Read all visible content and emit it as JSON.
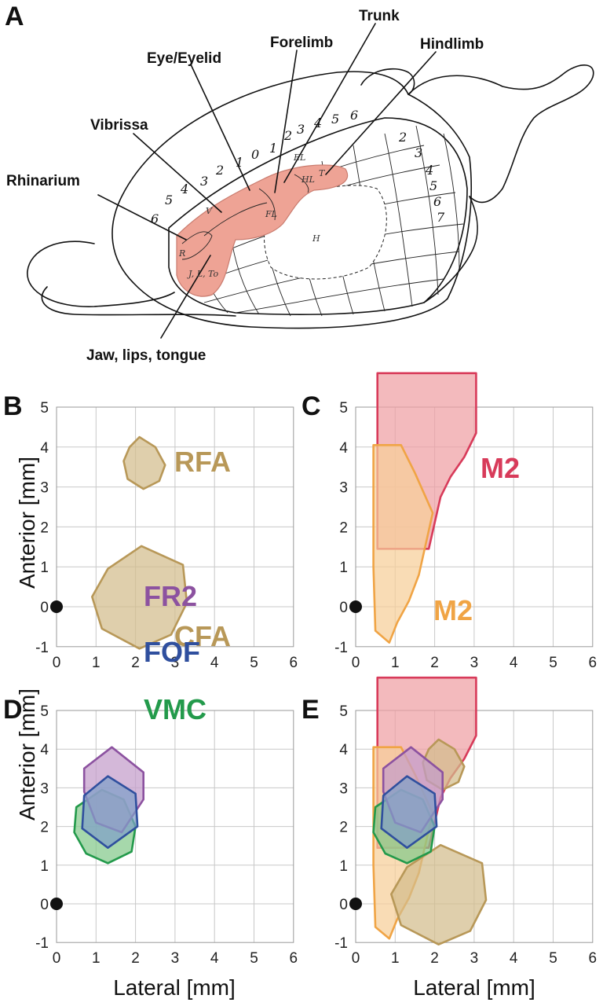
{
  "panel_a": {
    "letter": "A",
    "callouts": {
      "trunk": "Trunk",
      "forelimb": "Forelimb",
      "hindlimb": "Hindlimb",
      "eye": "Eye/Eyelid",
      "vibrissa": "Vibrissa",
      "rhinarium": "Rhinarium",
      "jaw": "Jaw, lips, tongue"
    },
    "sketch_numbers_arc": [
      "6",
      "5",
      "4",
      "3",
      "2",
      "1",
      "0",
      "1",
      "2",
      "3",
      "4",
      "5",
      "6"
    ],
    "sketch_numbers_side": [
      "2",
      "3",
      "4",
      "5",
      "6",
      "7"
    ],
    "sketch_region_codes": [
      "R",
      "V",
      "J, L, To",
      "FL",
      "HL",
      "T",
      "EL",
      "H"
    ],
    "colors": {
      "map_fill": "#eea395",
      "map_stroke": "#c97b6e"
    }
  },
  "axes": {
    "x_ticks": [
      "0",
      "1",
      "2",
      "3",
      "4",
      "5",
      "6"
    ],
    "y_ticks": [
      "5",
      "4",
      "3",
      "2",
      "1",
      "0",
      "-1"
    ],
    "xlabel": "Lateral [mm]",
    "ylabel": "Anterior [mm]",
    "xlim": [
      0,
      6
    ],
    "ylim": [
      -1,
      5
    ]
  },
  "colors": {
    "tan": "#b89858",
    "tan_fill": "#d2bd8c",
    "red": "#d83b5a",
    "red_fill": "#eea0a4",
    "orange": "#f0a445",
    "orange_fill": "#f7cf98",
    "purple": "#8c52a0",
    "purple_fill": "#c39dcb",
    "blue": "#2f4f9e",
    "blue_fill": "#7f9fc8",
    "green": "#239a4b",
    "green_fill": "#84c98a"
  },
  "panels": [
    {
      "letter": "B",
      "labels": [
        {
          "text": "RFA",
          "color": "tan"
        },
        {
          "text": "CFA",
          "color": "tan"
        }
      ],
      "regions": [
        {
          "name": "RFA",
          "color": "tan",
          "points": [
            [
              2.1,
              4.25
            ],
            [
              2.5,
              4.0
            ],
            [
              2.75,
              3.55
            ],
            [
              2.6,
              3.15
            ],
            [
              2.2,
              2.95
            ],
            [
              1.8,
              3.2
            ],
            [
              1.7,
              3.65
            ],
            [
              1.85,
              4.0
            ]
          ]
        },
        {
          "name": "CFA",
          "color": "tan",
          "points": [
            [
              2.15,
              1.52
            ],
            [
              3.2,
              1.05
            ],
            [
              3.3,
              0.1
            ],
            [
              2.9,
              -0.7
            ],
            [
              2.1,
              -1.05
            ],
            [
              1.15,
              -0.55
            ],
            [
              0.9,
              0.25
            ],
            [
              1.3,
              0.95
            ]
          ]
        }
      ]
    },
    {
      "letter": "C",
      "labels": [
        {
          "text": "M2",
          "color": "red"
        },
        {
          "text": "M2",
          "color": "orange"
        }
      ],
      "regions": [
        {
          "name": "M2",
          "color": "red",
          "points": [
            [
              0.55,
              5.85
            ],
            [
              3.05,
              5.85
            ],
            [
              3.05,
              4.35
            ],
            [
              2.75,
              3.75
            ],
            [
              2.4,
              3.25
            ],
            [
              2.15,
              2.75
            ],
            [
              1.85,
              1.45
            ],
            [
              0.55,
              1.45
            ]
          ]
        },
        {
          "name": "M2",
          "color": "orange",
          "points": [
            [
              0.45,
              4.05
            ],
            [
              1.15,
              4.05
            ],
            [
              1.5,
              3.35
            ],
            [
              1.95,
              2.35
            ],
            [
              1.6,
              0.8
            ],
            [
              1.35,
              0.15
            ],
            [
              1.05,
              -0.4
            ],
            [
              0.85,
              -0.9
            ],
            [
              0.5,
              -0.6
            ],
            [
              0.45,
              1.0
            ]
          ]
        }
      ]
    },
    {
      "letter": "D",
      "labels": [
        {
          "text": "FR2",
          "color": "purple"
        },
        {
          "text": "FOF",
          "color": "blue"
        },
        {
          "text": "VMC",
          "color": "green"
        }
      ],
      "regions": [
        {
          "name": "VMC",
          "color": "green",
          "points": [
            [
              1.15,
              2.95
            ],
            [
              1.7,
              2.7
            ],
            [
              2.0,
              2.0
            ],
            [
              1.9,
              1.35
            ],
            [
              1.3,
              1.05
            ],
            [
              0.75,
              1.3
            ],
            [
              0.45,
              1.85
            ],
            [
              0.5,
              2.5
            ]
          ]
        },
        {
          "name": "FR2",
          "color": "purple",
          "points": [
            [
              1.4,
              4.05
            ],
            [
              2.2,
              3.4
            ],
            [
              2.2,
              2.7
            ],
            [
              1.65,
              1.85
            ],
            [
              1.0,
              2.1
            ],
            [
              0.7,
              2.9
            ],
            [
              0.7,
              3.5
            ]
          ]
        },
        {
          "name": "FOF",
          "color": "blue",
          "points": [
            [
              1.3,
              3.3
            ],
            [
              2.0,
              2.85
            ],
            [
              2.05,
              2.0
            ],
            [
              1.3,
              1.45
            ],
            [
              0.65,
              1.95
            ],
            [
              0.7,
              2.8
            ]
          ]
        }
      ]
    },
    {
      "letter": "E",
      "labels": [],
      "regions": [
        {
          "name": "M2",
          "color": "red",
          "points": [
            [
              0.55,
              5.85
            ],
            [
              3.05,
              5.85
            ],
            [
              3.05,
              4.35
            ],
            [
              2.75,
              3.75
            ],
            [
              2.4,
              3.25
            ],
            [
              2.15,
              2.75
            ],
            [
              1.85,
              1.45
            ],
            [
              0.55,
              1.45
            ]
          ]
        },
        {
          "name": "M2",
          "color": "orange",
          "points": [
            [
              0.45,
              4.05
            ],
            [
              1.15,
              4.05
            ],
            [
              1.5,
              3.35
            ],
            [
              1.95,
              2.35
            ],
            [
              1.6,
              0.8
            ],
            [
              1.35,
              0.15
            ],
            [
              1.05,
              -0.4
            ],
            [
              0.85,
              -0.9
            ],
            [
              0.5,
              -0.6
            ],
            [
              0.45,
              1.0
            ]
          ]
        },
        {
          "name": "RFA",
          "color": "tan",
          "points": [
            [
              2.1,
              4.25
            ],
            [
              2.5,
              4.0
            ],
            [
              2.75,
              3.55
            ],
            [
              2.6,
              3.15
            ],
            [
              2.2,
              2.95
            ],
            [
              1.8,
              3.2
            ],
            [
              1.7,
              3.65
            ],
            [
              1.85,
              4.0
            ]
          ]
        },
        {
          "name": "CFA",
          "color": "tan",
          "points": [
            [
              2.15,
              1.52
            ],
            [
              3.2,
              1.05
            ],
            [
              3.3,
              0.1
            ],
            [
              2.9,
              -0.7
            ],
            [
              2.1,
              -1.05
            ],
            [
              1.15,
              -0.55
            ],
            [
              0.9,
              0.25
            ],
            [
              1.3,
              0.95
            ]
          ]
        },
        {
          "name": "VMC",
          "color": "green",
          "points": [
            [
              1.15,
              2.95
            ],
            [
              1.7,
              2.7
            ],
            [
              2.0,
              2.0
            ],
            [
              1.9,
              1.35
            ],
            [
              1.3,
              1.05
            ],
            [
              0.75,
              1.3
            ],
            [
              0.45,
              1.85
            ],
            [
              0.5,
              2.5
            ]
          ]
        },
        {
          "name": "FR2",
          "color": "purple",
          "points": [
            [
              1.4,
              4.05
            ],
            [
              2.2,
              3.4
            ],
            [
              2.2,
              2.7
            ],
            [
              1.65,
              1.85
            ],
            [
              1.0,
              2.1
            ],
            [
              0.7,
              2.9
            ],
            [
              0.7,
              3.5
            ]
          ]
        },
        {
          "name": "FOF",
          "color": "blue",
          "points": [
            [
              1.3,
              3.3
            ],
            [
              2.0,
              2.85
            ],
            [
              2.05,
              2.0
            ],
            [
              1.3,
              1.45
            ],
            [
              0.65,
              1.95
            ],
            [
              0.7,
              2.8
            ]
          ]
        }
      ]
    }
  ]
}
